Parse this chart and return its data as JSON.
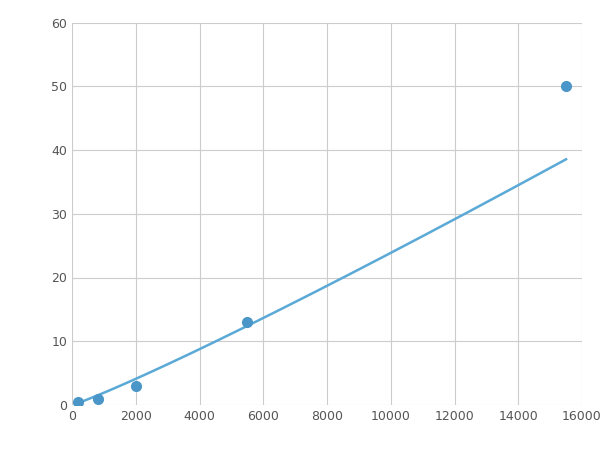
{
  "x_points": [
    200,
    800,
    2000,
    5500,
    15500
  ],
  "y_points": [
    0.5,
    1.0,
    3.0,
    13.0,
    50.0
  ],
  "line_color": "#5aa9d6",
  "marker_color": "#4a96c8",
  "marker_size": 7,
  "line_width": 1.8,
  "xlim": [
    0,
    16000
  ],
  "ylim": [
    0,
    60
  ],
  "xticks": [
    0,
    2000,
    4000,
    6000,
    8000,
    10000,
    12000,
    14000,
    16000
  ],
  "yticks": [
    0,
    10,
    20,
    30,
    40,
    50,
    60
  ],
  "grid_color": "#cccccc",
  "background_color": "#ffffff",
  "fig_width": 6.0,
  "fig_height": 4.5,
  "dpi": 100
}
